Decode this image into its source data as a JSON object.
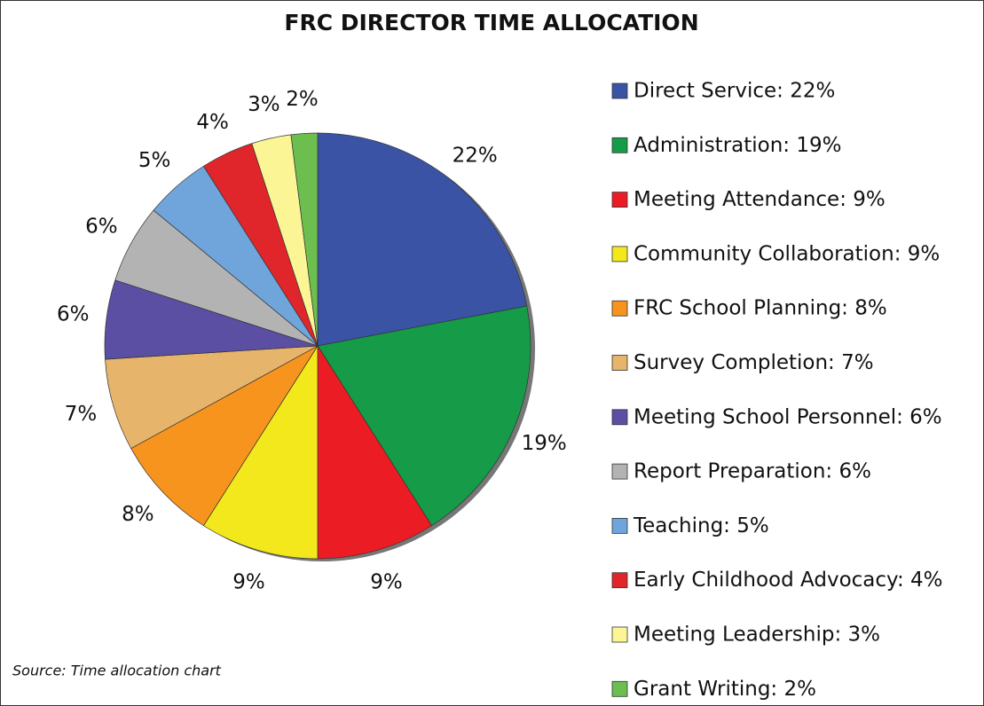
{
  "chart_data": {
    "type": "pie",
    "title": "FRC DIRECTOR TIME ALLOCATION",
    "categories": [
      "Direct Service: 22%",
      "Administration: 19%",
      "Meeting Attendance: 9%",
      "Community Collaboration: 9%",
      "FRC School Planning: 8%",
      "Survey Completion: 7%",
      "Meeting School Personnel: 6%",
      "Report Preparation: 6%",
      "Teaching: 5%",
      "Early Childhood Advocacy: 4%",
      "Meeting Leadership: 3%",
      "Grant Writing: 2%"
    ],
    "values": [
      22,
      19,
      9,
      9,
      8,
      7,
      6,
      6,
      5,
      4,
      3,
      2
    ],
    "value_labels": [
      "22%",
      "19%",
      "9%",
      "9%",
      "8%",
      "7%",
      "6%",
      "6%",
      "5%",
      "4%",
      "3%",
      "2%"
    ],
    "colors": [
      "#3a53a4",
      "#169b48",
      "#ec1c24",
      "#f2e81b",
      "#f7941e",
      "#e6b46b",
      "#5a4fa2",
      "#b3b3b3",
      "#6fa5db",
      "#e0262b",
      "#fbf595",
      "#6cbf4f"
    ],
    "legend": "right",
    "source": "Source: Time allocation chart"
  }
}
